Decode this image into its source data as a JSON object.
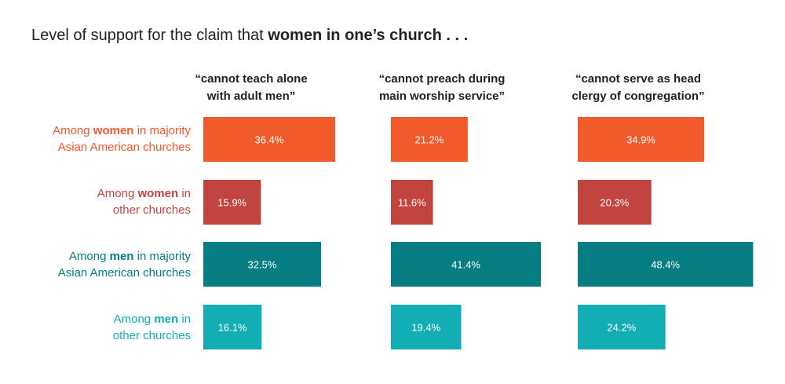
{
  "colors": {
    "women_asian": "#F15A2B",
    "women_other": "#C1443F",
    "men_asian": "#067D82",
    "men_other": "#13AEB5"
  },
  "chart_data": {
    "type": "bar",
    "title": {
      "plain": "Level of support for the claim that ",
      "bold": "women in one’s church . . ."
    },
    "panels": [
      {
        "line1": "“cannot teach alone",
        "line2": "with adult men”"
      },
      {
        "line1": "“cannot preach during",
        "line2": "main worship service”"
      },
      {
        "line1": "“cannot serve as head",
        "line2": "clergy of congregation”"
      }
    ],
    "rows": [
      {
        "pre": "Among ",
        "bold": "women",
        "post1": " in majority",
        "line2": "Asian American churches"
      },
      {
        "pre": "Among ",
        "bold": "women",
        "post1": " in",
        "line2": "other churches"
      },
      {
        "pre": "Among ",
        "bold": "men",
        "post1": " in majority",
        "line2": "Asian American churches"
      },
      {
        "pre": "Among ",
        "bold": "men",
        "post1": " in",
        "line2": "other churches"
      }
    ],
    "values": [
      [
        36.4,
        21.2,
        34.9
      ],
      [
        15.9,
        11.6,
        20.3
      ],
      [
        32.5,
        41.4,
        48.4
      ],
      [
        16.1,
        19.4,
        24.2
      ]
    ],
    "labels": [
      [
        "36.4%",
        "21.2%",
        "34.9%"
      ],
      [
        "15.9%",
        "11.6%",
        "20.3%"
      ],
      [
        "32.5%",
        "41.4%",
        "48.4%"
      ],
      [
        "16.1%",
        "19.4%",
        "24.2%"
      ]
    ],
    "xlim": [
      0,
      50
    ]
  }
}
